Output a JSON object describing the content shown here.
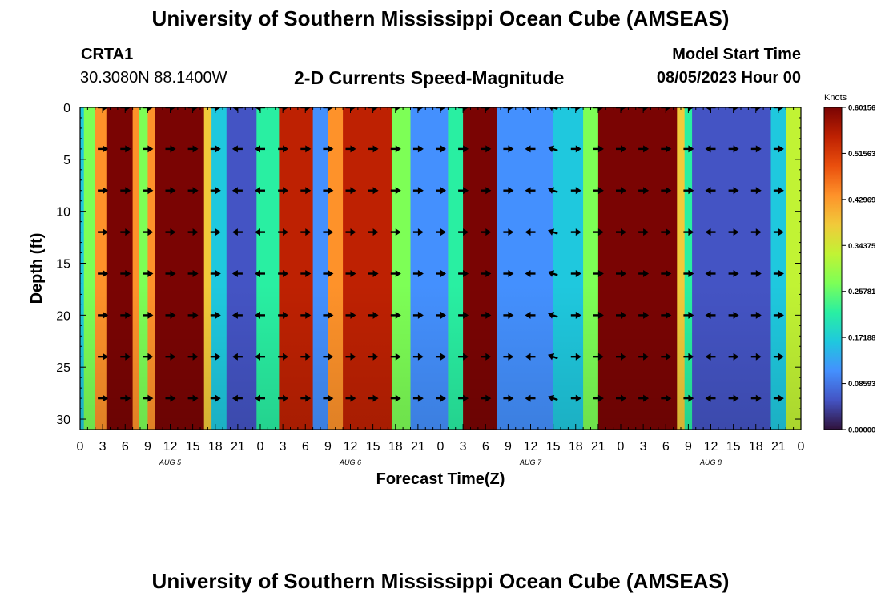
{
  "page": {
    "title": "University of Southern Mississippi Ocean Cube (AMSEAS)",
    "footer_title": "University of Southern Mississippi Ocean Cube (AMSEAS)",
    "station_id": "CRTA1",
    "station_coords": "30.3080N  88.1400W",
    "chart_heading": "2-D Currents Speed-Magnitude",
    "model_start_label": "Model Start Time",
    "model_start_value": "08/05/2023 Hour 00"
  },
  "colors": {
    "colormap": [
      "#30123b",
      "#4454c4",
      "#4490fe",
      "#1fc8de",
      "#29efa2",
      "#7dff56",
      "#c1f334",
      "#f1ca3a",
      "#fe922a",
      "#ea4f0d",
      "#be2102",
      "#7a0403"
    ],
    "arrow": "#000000"
  },
  "chart_data": {
    "type": "heatmap",
    "title": "2-D Currents Speed-Magnitude",
    "xlabel": "Forecast Time(Z)",
    "ylabel": "Depth (ft)",
    "x_range_hours": [
      0,
      96
    ],
    "x_tick_step_hours": 3,
    "x_tick_labels": [
      "0",
      "3",
      "6",
      "9",
      "12",
      "15",
      "18",
      "21",
      "0",
      "3",
      "6",
      "9",
      "12",
      "15",
      "18",
      "21",
      "0",
      "3",
      "6",
      "9",
      "12",
      "15",
      "18",
      "21",
      "0",
      "3",
      "6",
      "9",
      "12",
      "15",
      "18",
      "21",
      "0"
    ],
    "day_labels": [
      {
        "label": "AUG 5",
        "hour": 12
      },
      {
        "label": "AUG 6",
        "hour": 36
      },
      {
        "label": "AUG 7",
        "hour": 60
      },
      {
        "label": "AUG 8",
        "hour": 84
      }
    ],
    "y_range_ft": [
      0,
      31
    ],
    "y_reversed": true,
    "y_ticks": [
      0,
      5,
      10,
      15,
      20,
      25,
      30
    ],
    "depth_levels_ft": [
      0,
      4,
      8,
      12,
      16,
      20,
      24,
      28
    ],
    "colorbar": {
      "unit": "Knots",
      "ticks": [
        "0.60156",
        "0.51563",
        "0.42969",
        "0.34375",
        "0.25781",
        "0.17188",
        "0.08593",
        "0.00000"
      ],
      "min": 0.0,
      "max": 0.60156
    },
    "speed_bands_knots": [
      {
        "start_hour": 0.0,
        "end_hour": 0.5,
        "speed": 0.15
      },
      {
        "start_hour": 0.5,
        "end_hour": 2.0,
        "speed": 0.3
      },
      {
        "start_hour": 2.0,
        "end_hour": 3.5,
        "speed": 0.45
      },
      {
        "start_hour": 3.5,
        "end_hour": 7.0,
        "speed": 0.58
      },
      {
        "start_hour": 7.0,
        "end_hour": 7.8,
        "speed": 0.42
      },
      {
        "start_hour": 7.8,
        "end_hour": 9.0,
        "speed": 0.28
      },
      {
        "start_hour": 9.0,
        "end_hour": 10.0,
        "speed": 0.42
      },
      {
        "start_hour": 10.0,
        "end_hour": 16.5,
        "speed": 0.58
      },
      {
        "start_hour": 16.5,
        "end_hour": 17.5,
        "speed": 0.38
      },
      {
        "start_hour": 17.5,
        "end_hour": 19.5,
        "speed": 0.16
      },
      {
        "start_hour": 19.5,
        "end_hour": 23.5,
        "speed": 0.06
      },
      {
        "start_hour": 23.5,
        "end_hour": 26.5,
        "speed": 0.2
      },
      {
        "start_hour": 26.5,
        "end_hour": 31.0,
        "speed": 0.56
      },
      {
        "start_hour": 31.0,
        "end_hour": 33.0,
        "speed": 0.12
      },
      {
        "start_hour": 33.0,
        "end_hour": 35.0,
        "speed": 0.45
      },
      {
        "start_hour": 35.0,
        "end_hour": 41.5,
        "speed": 0.55
      },
      {
        "start_hour": 41.5,
        "end_hour": 44.0,
        "speed": 0.28
      },
      {
        "start_hour": 44.0,
        "end_hour": 49.0,
        "speed": 0.1
      },
      {
        "start_hour": 49.0,
        "end_hour": 51.0,
        "speed": 0.22
      },
      {
        "start_hour": 51.0,
        "end_hour": 55.5,
        "speed": 0.58
      },
      {
        "start_hour": 55.5,
        "end_hour": 63.0,
        "speed": 0.09
      },
      {
        "start_hour": 63.0,
        "end_hour": 67.0,
        "speed": 0.15
      },
      {
        "start_hour": 67.0,
        "end_hour": 69.0,
        "speed": 0.3
      },
      {
        "start_hour": 69.0,
        "end_hour": 79.5,
        "speed": 0.58
      },
      {
        "start_hour": 79.5,
        "end_hour": 80.5,
        "speed": 0.4
      },
      {
        "start_hour": 80.5,
        "end_hour": 81.5,
        "speed": 0.2
      },
      {
        "start_hour": 81.5,
        "end_hour": 92.0,
        "speed": 0.08
      },
      {
        "start_hour": 92.0,
        "end_hour": 94.0,
        "speed": 0.16
      },
      {
        "start_hour": 94.0,
        "end_hour": 96.0,
        "speed": 0.32
      }
    ],
    "arrow_hours": [
      3,
      6,
      9,
      12,
      15,
      18,
      21,
      24,
      27,
      30,
      33,
      36,
      39,
      42,
      45,
      48,
      51,
      54,
      57,
      60,
      63,
      66,
      69,
      72,
      75,
      78,
      81,
      84,
      87,
      90,
      93
    ],
    "arrow_directions_deg": [
      0,
      0,
      0,
      0,
      0,
      0,
      180,
      180,
      0,
      0,
      0,
      0,
      0,
      0,
      0,
      0,
      0,
      0,
      0,
      180,
      200,
      0,
      0,
      0,
      0,
      0,
      0,
      180,
      0,
      0,
      0
    ],
    "grid": false,
    "legend": "colorbar-right"
  }
}
